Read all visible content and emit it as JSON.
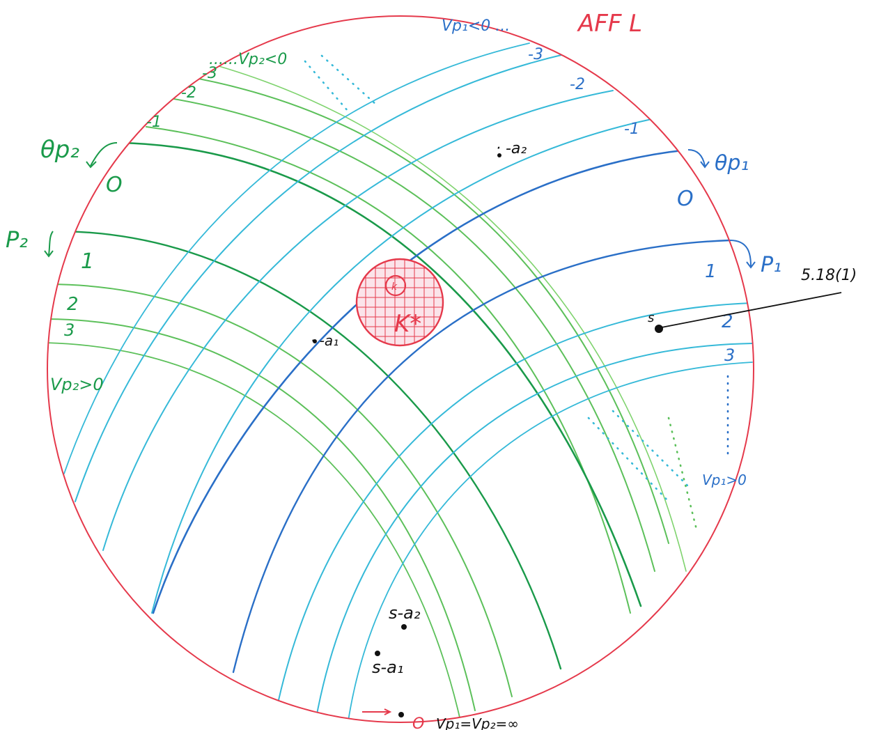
{
  "colors": {
    "boundary": "#e5394b",
    "family_p2": "#1a9a4a",
    "family_p2_light": "#5cc05a",
    "family_p1": "#2a6fc7",
    "family_p1_light": "#35b9d8",
    "annotation": "#111111"
  },
  "labels": {
    "title": "AFF L",
    "vp1_neg": "Vp₁<0 ...",
    "vp2_neg": "......Vp₂<0",
    "vp2_pos": "Vp₂>0",
    "vp1_pos": "Vp₁>0",
    "theta_p2": "θp₂",
    "theta_p1": "θp₁",
    "p2": "P₂",
    "p1": "P₁",
    "zero": "O",
    "reference": "5.18(1)",
    "point_s": "s",
    "minus_a2": "· -a₂",
    "minus_a1": "· -a₁",
    "s_minus_a2": "s-a₂",
    "s_minus_a1": "s-a₁",
    "kstar": "K*",
    "theta_k": "Θ",
    "k_small": "k",
    "bottom_o": "O",
    "bottom_eq": "Vp₁=Vp₂=∞"
  },
  "p2_levels": [
    {
      "label": "-3"
    },
    {
      "label": "-2"
    },
    {
      "label": "-1"
    },
    {
      "label": "0"
    },
    {
      "label": "1"
    },
    {
      "label": "2"
    },
    {
      "label": "3"
    }
  ],
  "p1_levels": [
    {
      "label": "-3"
    },
    {
      "label": "-2"
    },
    {
      "label": "-1"
    },
    {
      "label": "0"
    },
    {
      "label": "1"
    },
    {
      "label": "2"
    },
    {
      "label": "3"
    }
  ]
}
